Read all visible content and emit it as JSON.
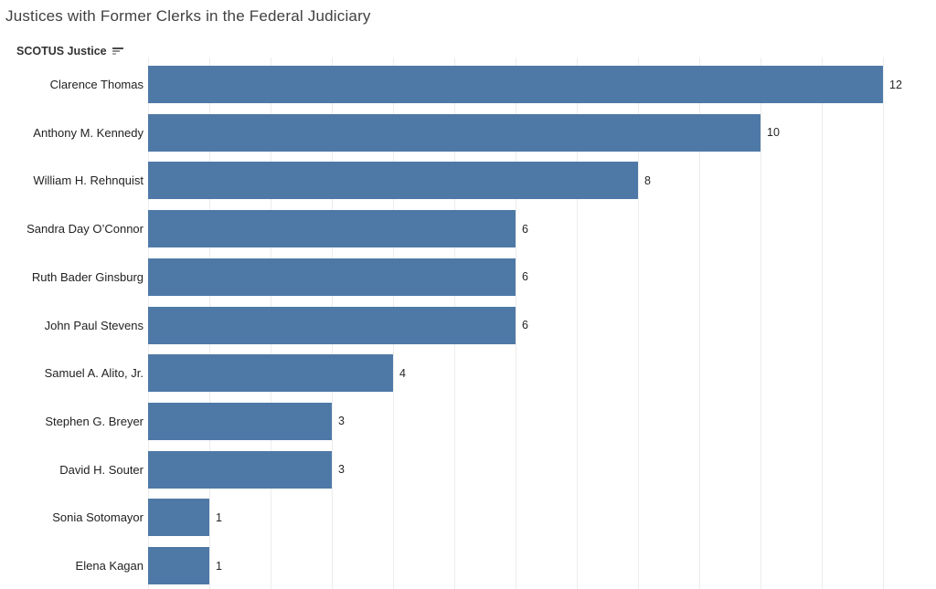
{
  "title": "Justices with Former Clerks in the Federal Judiciary",
  "axis_header": {
    "label": "SCOTUS Justice",
    "sort_icon": "sort-descending-icon"
  },
  "colors": {
    "bar": "#4e79a7",
    "gridline": "#ececec",
    "title_text": "#414141",
    "label_text": "#222222"
  },
  "chart_data": {
    "type": "bar",
    "orientation": "horizontal",
    "title": "Justices with Former Clerks in the Federal Judiciary",
    "categories": [
      "Clarence Thomas",
      "Anthony M. Kennedy",
      "William H. Rehnquist",
      "Sandra Day O’Connor",
      "Ruth Bader Ginsburg",
      "John Paul Stevens",
      "Samuel A. Alito, Jr.",
      "Stephen G. Breyer",
      "David H. Souter",
      "Sonia Sotomayor",
      "Elena Kagan"
    ],
    "values": [
      12,
      10,
      8,
      6,
      6,
      6,
      4,
      3,
      3,
      1,
      1
    ],
    "xlabel": "",
    "ylabel": "SCOTUS Justice",
    "xlim": [
      0,
      12.85
    ],
    "grid": true,
    "grid_interval": 1,
    "legend": false,
    "value_labels": true
  }
}
